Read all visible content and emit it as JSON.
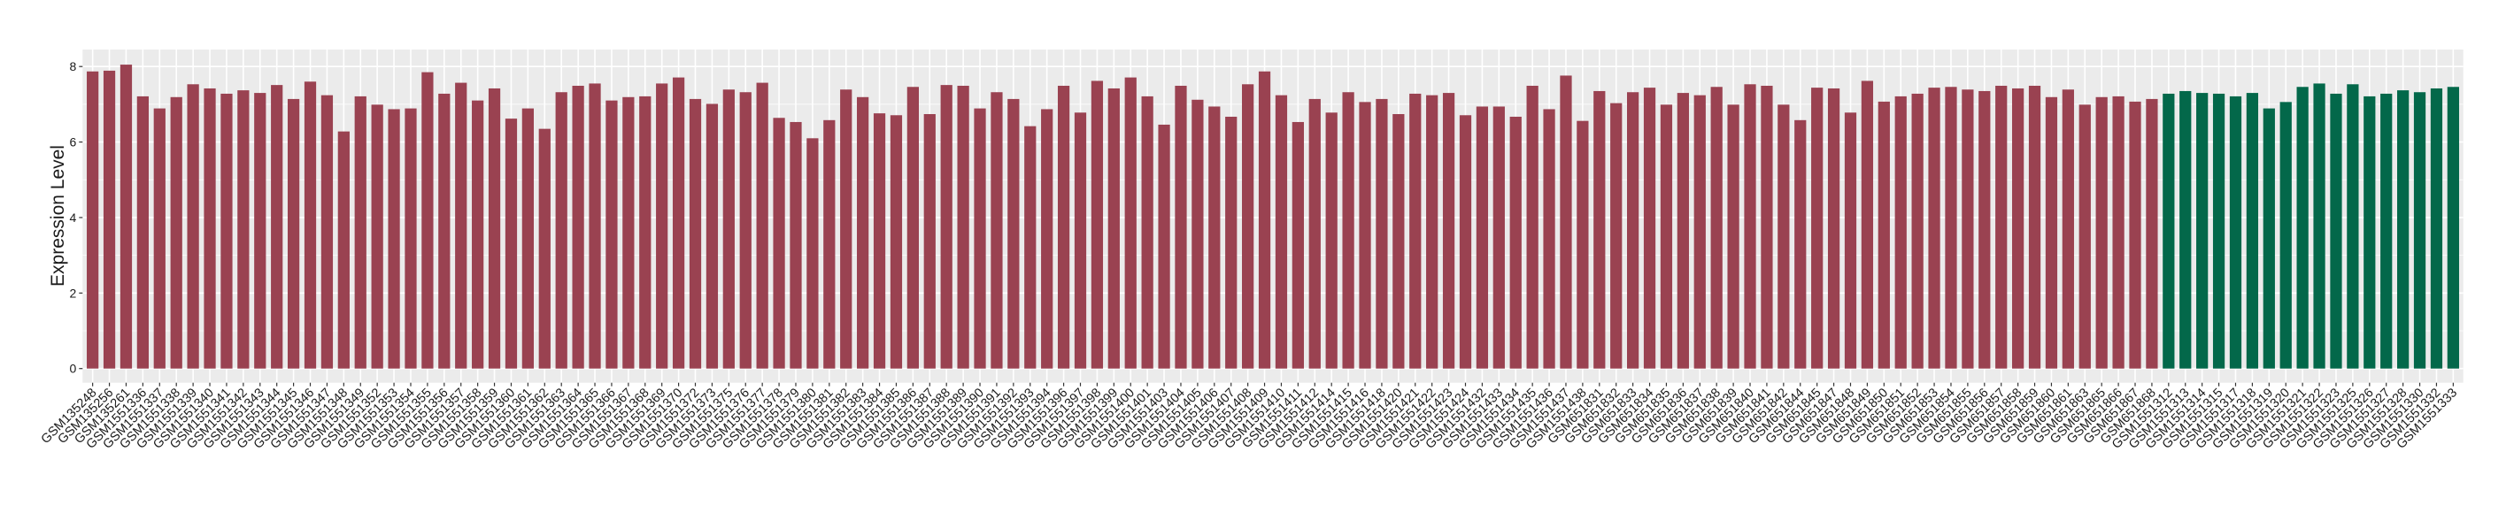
{
  "chart_data": {
    "type": "bar",
    "title": "",
    "xlabel": "",
    "ylabel": "Expression Level",
    "ylim": [
      -0.375,
      8.45
    ],
    "yticks": [
      0,
      2,
      4,
      6,
      8
    ],
    "grid": true,
    "legend": "none",
    "colors": {
      "group_1": "#9A4251",
      "group_2": "#03684A",
      "panel_bg": "#EBEBEB",
      "grid": "#FFFFFF"
    },
    "categories": [
      "GSM135248",
      "GSM135256",
      "GSM135261",
      "GSM1551336",
      "GSM1551337",
      "GSM1551338",
      "GSM1551339",
      "GSM1551340",
      "GSM1551341",
      "GSM1551342",
      "GSM1551343",
      "GSM1551344",
      "GSM1551345",
      "GSM1551346",
      "GSM1551347",
      "GSM1551348",
      "GSM1551349",
      "GSM1551352",
      "GSM1551353",
      "GSM1551354",
      "GSM1551355",
      "GSM1551356",
      "GSM1551357",
      "GSM1551358",
      "GSM1551359",
      "GSM1551360",
      "GSM1551361",
      "GSM1551362",
      "GSM1551363",
      "GSM1551364",
      "GSM1551365",
      "GSM1551366",
      "GSM1551367",
      "GSM1551368",
      "GSM1551369",
      "GSM1551370",
      "GSM1551372",
      "GSM1551373",
      "GSM1551375",
      "GSM1551376",
      "GSM1551377",
      "GSM1551378",
      "GSM1551379",
      "GSM1551380",
      "GSM1551381",
      "GSM1551382",
      "GSM1551383",
      "GSM1551384",
      "GSM1551385",
      "GSM1551386",
      "GSM1551387",
      "GSM1551388",
      "GSM1551389",
      "GSM1551390",
      "GSM1551391",
      "GSM1551392",
      "GSM1551393",
      "GSM1551394",
      "GSM1551396",
      "GSM1551397",
      "GSM1551398",
      "GSM1551399",
      "GSM1551400",
      "GSM1551401",
      "GSM1551403",
      "GSM1551404",
      "GSM1551405",
      "GSM1551406",
      "GSM1551407",
      "GSM1551408",
      "GSM1551409",
      "GSM1551410",
      "GSM1551411",
      "GSM1551412",
      "GSM1551414",
      "GSM1551415",
      "GSM1551416",
      "GSM1551418",
      "GSM1551420",
      "GSM1551421",
      "GSM1551422",
      "GSM1551423",
      "GSM1551424",
      "GSM1551432",
      "GSM1551433",
      "GSM1551434",
      "GSM1551435",
      "GSM1551436",
      "GSM1551437",
      "GSM1551438",
      "GSM651831",
      "GSM651832",
      "GSM651833",
      "GSM651834",
      "GSM651835",
      "GSM651836",
      "GSM651837",
      "GSM651838",
      "GSM651839",
      "GSM651840",
      "GSM651841",
      "GSM651842",
      "GSM651844",
      "GSM651845",
      "GSM651847",
      "GSM651848",
      "GSM651849",
      "GSM651850",
      "GSM651851",
      "GSM651852",
      "GSM651853",
      "GSM651854",
      "GSM651855",
      "GSM651856",
      "GSM651857",
      "GSM651858",
      "GSM651859",
      "GSM651860",
      "GSM651861",
      "GSM651863",
      "GSM651865",
      "GSM651866",
      "GSM651867",
      "GSM651868",
      "GSM1551312",
      "GSM1551313",
      "GSM1551314",
      "GSM1551315",
      "GSM1551317",
      "GSM1551318",
      "GSM1551319",
      "GSM1551320",
      "GSM1551321",
      "GSM1551322",
      "GSM1551323",
      "GSM1551325",
      "GSM1551326",
      "GSM1551327",
      "GSM1551328",
      "GSM1551330",
      "GSM1551332",
      "GSM1551333"
    ],
    "values": [
      7.87,
      7.89,
      8.05,
      7.21,
      6.89,
      7.19,
      7.53,
      7.42,
      7.28,
      7.37,
      7.3,
      7.51,
      7.14,
      7.6,
      7.24,
      6.28,
      7.21,
      6.99,
      6.87,
      6.89,
      7.85,
      7.28,
      7.57,
      7.1,
      7.42,
      6.62,
      6.89,
      6.35,
      7.32,
      7.49,
      7.55,
      7.1,
      7.19,
      7.21,
      7.55,
      7.71,
      7.14,
      7.01,
      7.39,
      7.32,
      7.57,
      6.64,
      6.53,
      6.1,
      6.58,
      7.39,
      7.19,
      6.76,
      6.71,
      7.46,
      6.74,
      7.51,
      7.49,
      6.89,
      7.32,
      7.14,
      6.42,
      6.87,
      7.49,
      6.78,
      7.62,
      7.42,
      7.71,
      7.21,
      6.46,
      7.49,
      7.12,
      6.94,
      6.67,
      7.53,
      7.87,
      7.24,
      6.53,
      7.14,
      6.78,
      7.32,
      7.06,
      7.14,
      6.74,
      7.28,
      7.24,
      7.3,
      6.71,
      6.94,
      6.94,
      6.67,
      7.49,
      6.87,
      7.76,
      6.56,
      7.35,
      7.03,
      7.32,
      7.44,
      6.99,
      7.3,
      7.24,
      7.46,
      6.99,
      7.53,
      7.49,
      6.99,
      6.58,
      7.44,
      7.42,
      6.78,
      7.62,
      7.07,
      7.21,
      7.28,
      7.44,
      7.46,
      7.39,
      7.35,
      7.49,
      7.42,
      7.49,
      7.19,
      7.39,
      6.99,
      7.19,
      7.21,
      7.07,
      7.14,
      7.28,
      7.35,
      7.3,
      7.28,
      7.21,
      7.3,
      6.89,
      7.06,
      7.46,
      7.55,
      7.28,
      7.53,
      7.21,
      7.28,
      7.37,
      7.32,
      7.42,
      7.46
    ],
    "groups": [
      "group_1",
      "group_1",
      "group_1",
      "group_1",
      "group_1",
      "group_1",
      "group_1",
      "group_1",
      "group_1",
      "group_1",
      "group_1",
      "group_1",
      "group_1",
      "group_1",
      "group_1",
      "group_1",
      "group_1",
      "group_1",
      "group_1",
      "group_1",
      "group_1",
      "group_1",
      "group_1",
      "group_1",
      "group_1",
      "group_1",
      "group_1",
      "group_1",
      "group_1",
      "group_1",
      "group_1",
      "group_1",
      "group_1",
      "group_1",
      "group_1",
      "group_1",
      "group_1",
      "group_1",
      "group_1",
      "group_1",
      "group_1",
      "group_1",
      "group_1",
      "group_1",
      "group_1",
      "group_1",
      "group_1",
      "group_1",
      "group_1",
      "group_1",
      "group_1",
      "group_1",
      "group_1",
      "group_1",
      "group_1",
      "group_1",
      "group_1",
      "group_1",
      "group_1",
      "group_1",
      "group_1",
      "group_1",
      "group_1",
      "group_1",
      "group_1",
      "group_1",
      "group_1",
      "group_1",
      "group_1",
      "group_1",
      "group_1",
      "group_1",
      "group_1",
      "group_1",
      "group_1",
      "group_1",
      "group_1",
      "group_1",
      "group_1",
      "group_1",
      "group_1",
      "group_1",
      "group_1",
      "group_1",
      "group_1",
      "group_1",
      "group_1",
      "group_1",
      "group_1",
      "group_1",
      "group_1",
      "group_1",
      "group_1",
      "group_1",
      "group_1",
      "group_1",
      "group_1",
      "group_1",
      "group_1",
      "group_1",
      "group_1",
      "group_1",
      "group_1",
      "group_1",
      "group_1",
      "group_1",
      "group_1",
      "group_1",
      "group_1",
      "group_1",
      "group_1",
      "group_1",
      "group_1",
      "group_1",
      "group_1",
      "group_1",
      "group_1",
      "group_1",
      "group_1",
      "group_1",
      "group_1",
      "group_1",
      "group_1",
      "group_1",
      "group_2",
      "group_2",
      "group_2",
      "group_2",
      "group_2",
      "group_2",
      "group_2",
      "group_2",
      "group_2",
      "group_2",
      "group_2",
      "group_2",
      "group_2",
      "group_2",
      "group_2",
      "group_2",
      "group_2",
      "group_2"
    ]
  }
}
